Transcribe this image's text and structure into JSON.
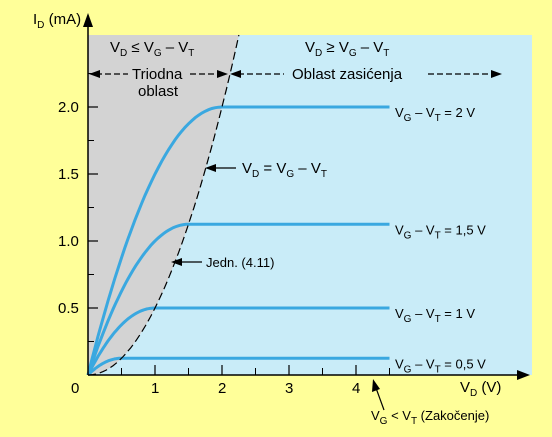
{
  "colors": {
    "page_bg": "#ffff99",
    "saturation_bg": "#c9ecf8",
    "triode_bg": "#d3d3d3",
    "curve": "#3aa8e0",
    "axis": "#000000"
  },
  "chart_data": {
    "type": "line",
    "xlabel": {
      "main": "V",
      "sub": "D",
      "rest": " (V)"
    },
    "ylabel": {
      "main": "I",
      "sub": "D",
      "rest": " (mA)"
    },
    "xlim": [
      0,
      5
    ],
    "ylim": [
      0,
      2.55
    ],
    "x_ticks": [
      {
        "value": 0,
        "label": "0"
      },
      {
        "value": 1,
        "label": "1"
      },
      {
        "value": 2,
        "label": "2"
      },
      {
        "value": 3,
        "label": "3"
      },
      {
        "value": 4,
        "label": "4"
      }
    ],
    "y_ticks": [
      {
        "value": 0.5,
        "label": "0.5"
      },
      {
        "value": 1.0,
        "label": "1.0"
      },
      {
        "value": 1.5,
        "label": "1.5"
      },
      {
        "value": 2.0,
        "label": "2.0"
      }
    ],
    "x_minor_ticks": [
      0.5,
      1.5,
      2.5,
      3.5,
      4.5
    ],
    "saturation_xmax": 4.5,
    "series": [
      {
        "name": "2 V",
        "overdrive": 2.0,
        "saturation_current": 2.0,
        "label": {
          "a": "V",
          "as": "G",
          "b": " – V",
          "bs": "T",
          "c": " = 2 V"
        }
      },
      {
        "name": "1,5 V",
        "overdrive": 1.5,
        "saturation_current": 1.125,
        "label": {
          "a": "V",
          "as": "G",
          "b": " – V",
          "bs": "T",
          "c": " = 1,5 V"
        }
      },
      {
        "name": "1 V",
        "overdrive": 1.0,
        "saturation_current": 0.5,
        "label": {
          "a": "V",
          "as": "G",
          "b": " – V",
          "bs": "T",
          "c": " = 1 V"
        }
      },
      {
        "name": "0,5 V",
        "overdrive": 0.5,
        "saturation_current": 0.125,
        "label": {
          "a": "V",
          "as": "G",
          "b": " – V",
          "bs": "T",
          "c": " = 0,5 V"
        }
      }
    ],
    "boundary": {
      "k": 0.5
    },
    "annotations": {
      "triode_condition": {
        "a": "V",
        "as": "D",
        "b": " ≤ V",
        "bs": "G",
        "c": " – V",
        "cs": "T"
      },
      "triode_name_1": "Triodna",
      "triode_name_2": "oblast",
      "saturation_condition": {
        "a": "V",
        "as": "D",
        "b": " ≥ V",
        "bs": "G",
        "c": " – V",
        "cs": "T"
      },
      "saturation_name": "Oblast zasićenja",
      "boundary_eq": {
        "a": "V",
        "as": "D",
        "b": " = V",
        "bs": "G",
        "c": " – V",
        "cs": "T"
      },
      "equation_ref": "Jedn. (4.11)",
      "cutoff": {
        "a": "V",
        "as": "G",
        "b": " < V",
        "bs": "T",
        "c": " (Zakočenje)"
      }
    }
  }
}
